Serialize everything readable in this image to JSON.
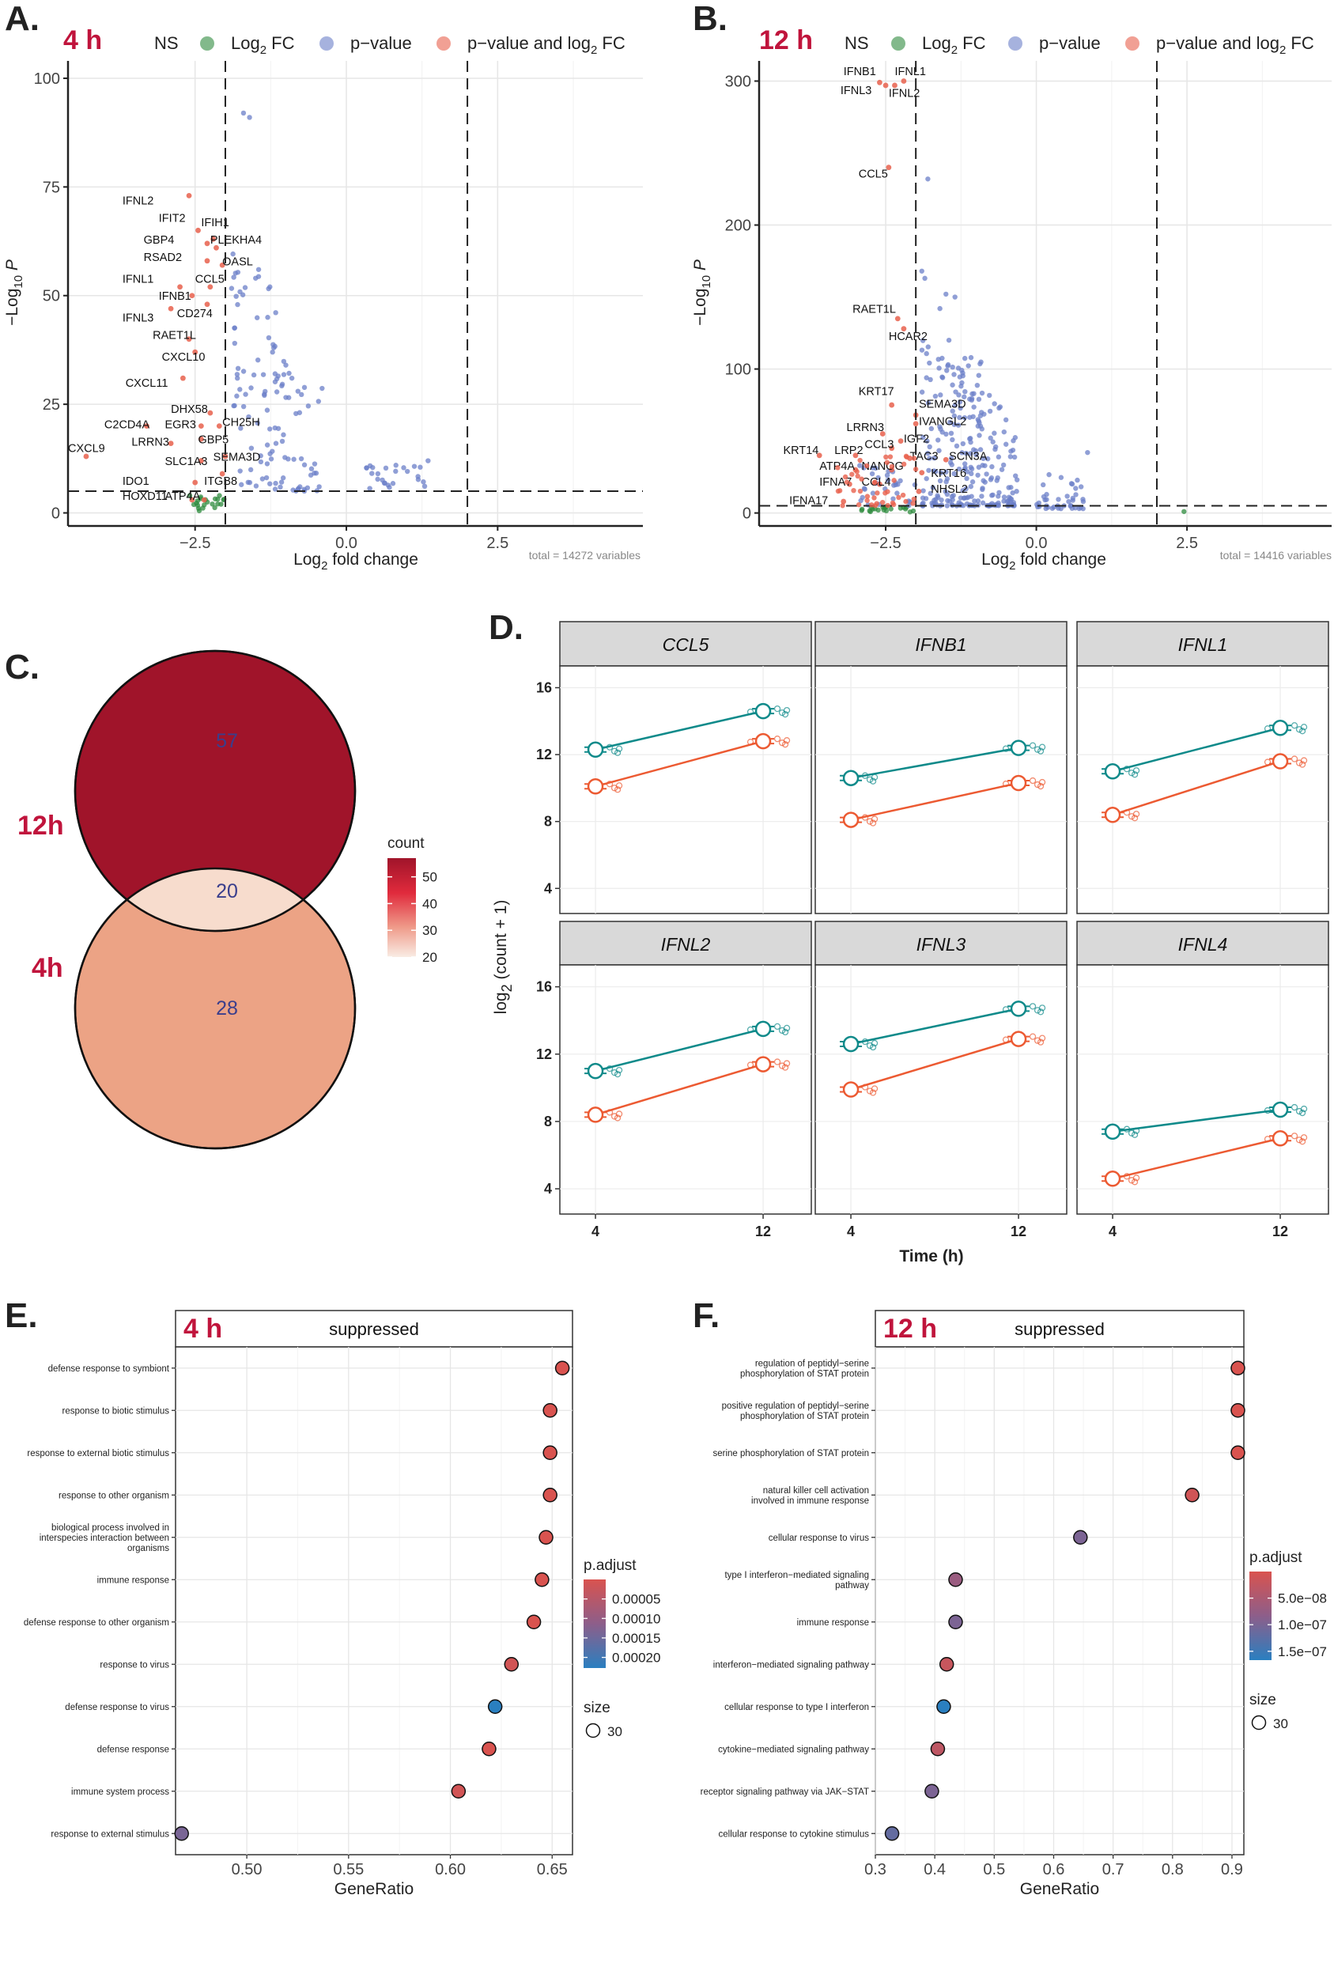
{
  "colors": {
    "ns": "#7a7a7a",
    "fc": "#2e8b3e",
    "pv": "#6b7fc8",
    "both": "#e8604c",
    "accent": "#c0143c",
    "teal": "#0f8a8a",
    "orange": "#ec5a32",
    "venn12": "#a0142a",
    "vennInter": "#f7dccd",
    "venn4": "#eca385",
    "vennText": "#3a3e8c",
    "goRed": "#d9534f",
    "goBlue": "#2a7fc0",
    "goPurple": "#8d5e8a"
  },
  "panels": {
    "A": {
      "letter": "A.",
      "timepoint": "4 h"
    },
    "B": {
      "letter": "B.",
      "timepoint": "12 h"
    },
    "C": {
      "letter": "C."
    },
    "D": {
      "letter": "D."
    },
    "E": {
      "letter": "E.",
      "timepoint": "4 h"
    },
    "F": {
      "letter": "F.",
      "timepoint": "12 h"
    }
  },
  "volcano_legend": {
    "ns": "NS",
    "fc_prefix": "Log",
    "fc_sub": "2",
    "fc_suffix": " FC",
    "pv": "p−value",
    "both_prefix": "p−value and log",
    "both_sub": "2",
    "both_suffix": " FC"
  },
  "volcano_axis": {
    "x_prefix": "Log",
    "x_sub": "2",
    "x_suffix": " fold change",
    "y_prefix": "−Log",
    "y_sub": "10",
    "y_suffix": " P"
  },
  "chart_data": [
    {
      "id": "volcano_4h",
      "type": "scatter",
      "title": "4 h",
      "xlabel": "Log2 fold change",
      "ylabel": "-Log10 P",
      "xlim": [
        -4.6,
        4.9
      ],
      "ylim": [
        -3,
        104
      ],
      "xticks": [
        -2.5,
        0.0,
        2.5
      ],
      "xtick_labels": [
        "−2.5",
        "0.0",
        "2.5"
      ],
      "yticks": [
        0,
        25,
        50,
        75,
        100
      ],
      "thresholds": {
        "log2fc": [
          -2,
          2
        ],
        "p": 5
      },
      "caption": "total = 14272 variables",
      "labeled_genes": [
        {
          "gene": "IFNL2",
          "x": -2.6,
          "y": 73,
          "lx": -3.7,
          "ly": 71
        },
        {
          "gene": "IFIT2",
          "x": -2.45,
          "y": 65,
          "lx": -3.1,
          "ly": 67
        },
        {
          "gene": "IFIH1",
          "x": -2.2,
          "y": 63,
          "lx": -2.4,
          "ly": 66
        },
        {
          "gene": "GBP4",
          "x": -2.3,
          "y": 62,
          "lx": -3.35,
          "ly": 62
        },
        {
          "gene": "PLEKHA4",
          "x": -2.15,
          "y": 61,
          "lx": -2.25,
          "ly": 62
        },
        {
          "gene": "RSAD2",
          "x": -2.3,
          "y": 58,
          "lx": -3.35,
          "ly": 58
        },
        {
          "gene": "OASL",
          "x": -2.05,
          "y": 57,
          "lx": -2.05,
          "ly": 57
        },
        {
          "gene": "IFNL1",
          "x": -2.75,
          "y": 52,
          "lx": -3.7,
          "ly": 53
        },
        {
          "gene": "CCL5",
          "x": -2.25,
          "y": 52,
          "lx": -2.5,
          "ly": 53
        },
        {
          "gene": "IFNB1",
          "x": -2.55,
          "y": 50,
          "lx": -3.1,
          "ly": 49
        },
        {
          "gene": "CD274",
          "x": -2.3,
          "y": 48,
          "lx": -2.8,
          "ly": 45
        },
        {
          "gene": "IFNL3",
          "x": -2.9,
          "y": 47,
          "lx": -3.7,
          "ly": 44
        },
        {
          "gene": "RAET1L",
          "x": -2.6,
          "y": 40,
          "lx": -3.2,
          "ly": 40
        },
        {
          "gene": "CXCL10",
          "x": -2.5,
          "y": 37,
          "lx": -3.05,
          "ly": 35
        },
        {
          "gene": "CXCL11",
          "x": -2.7,
          "y": 31,
          "lx": -3.65,
          "ly": 29
        },
        {
          "gene": "DHX58",
          "x": -2.25,
          "y": 23,
          "lx": -2.9,
          "ly": 23
        },
        {
          "gene": "CH25H",
          "x": -2.1,
          "y": 20,
          "lx": -2.05,
          "ly": 20
        },
        {
          "gene": "C2CD4A",
          "x": -3.3,
          "y": 20,
          "lx": -4.0,
          "ly": 19.5
        },
        {
          "gene": "EGR3",
          "x": -2.4,
          "y": 20,
          "lx": -3.0,
          "ly": 19.5
        },
        {
          "gene": "GBP5",
          "x": -2.4,
          "y": 17,
          "lx": -2.45,
          "ly": 16
        },
        {
          "gene": "LRRN3",
          "x": -2.9,
          "y": 16,
          "lx": -3.55,
          "ly": 15.5
        },
        {
          "gene": "CXCL9",
          "x": -4.3,
          "y": 13,
          "lx": -4.6,
          "ly": 14
        },
        {
          "gene": "SLC1A3",
          "x": -2.4,
          "y": 12,
          "lx": -3.0,
          "ly": 11
        },
        {
          "gene": "SEMA3D",
          "x": -2.0,
          "y": 13,
          "lx": -2.2,
          "ly": 12
        },
        {
          "gene": "IDO1",
          "x": -2.5,
          "y": 7,
          "lx": -3.7,
          "ly": 6.5
        },
        {
          "gene": "ITGB8",
          "x": -2.05,
          "y": 9,
          "lx": -2.35,
          "ly": 6.5
        },
        {
          "gene": "HOXD11",
          "x": -2.55,
          "y": 3,
          "lx": -3.7,
          "ly": 3
        },
        {
          "gene": "ATP4A",
          "x": -2.35,
          "y": 3,
          "lx": -3.0,
          "ly": 3
        }
      ]
    },
    {
      "id": "volcano_12h",
      "type": "scatter",
      "title": "12 h",
      "xlabel": "Log2 fold change",
      "ylabel": "-Log10 P",
      "xlim": [
        -4.6,
        4.9
      ],
      "ylim": [
        -9,
        314
      ],
      "xticks": [
        -2.5,
        0.0,
        2.5
      ],
      "xtick_labels": [
        "−2.5",
        "0.0",
        "2.5"
      ],
      "yticks": [
        0,
        100,
        200,
        300
      ],
      "thresholds": {
        "log2fc": [
          -2,
          2
        ],
        "p": 5
      },
      "caption": "total = 14416 variables",
      "labeled_genes": [
        {
          "gene": "IFNB1",
          "x": -2.6,
          "y": 299,
          "lx": -3.2,
          "ly": 304
        },
        {
          "gene": "IFNL1",
          "x": -2.2,
          "y": 300,
          "lx": -2.35,
          "ly": 304
        },
        {
          "gene": "IFNL3",
          "x": -2.5,
          "y": 297,
          "lx": -3.25,
          "ly": 291
        },
        {
          "gene": "IFNL2",
          "x": -2.35,
          "y": 297,
          "lx": -2.45,
          "ly": 289
        },
        {
          "gene": "CCL5",
          "x": -2.45,
          "y": 240,
          "lx": -2.95,
          "ly": 233
        },
        {
          "gene": "RAET1L",
          "x": -2.3,
          "y": 135,
          "lx": -3.05,
          "ly": 139
        },
        {
          "gene": "HCAR2",
          "x": -2.2,
          "y": 128,
          "lx": -2.45,
          "ly": 120
        },
        {
          "gene": "KRT17",
          "x": -2.4,
          "y": 75,
          "lx": -2.95,
          "ly": 82
        },
        {
          "gene": "SEMA3D",
          "x": -2.0,
          "y": 68,
          "lx": -1.95,
          "ly": 73
        },
        {
          "gene": "IVANGL2",
          "x": -2.0,
          "y": 62,
          "lx": -1.95,
          "ly": 61
        },
        {
          "gene": "LRRN3",
          "x": -2.55,
          "y": 55,
          "lx": -3.15,
          "ly": 57
        },
        {
          "gene": "IGF2",
          "x": -2.25,
          "y": 50,
          "lx": -2.2,
          "ly": 49
        },
        {
          "gene": "CCL3",
          "x": -2.4,
          "y": 45,
          "lx": -2.85,
          "ly": 45
        },
        {
          "gene": "KRT14",
          "x": -3.6,
          "y": 40,
          "lx": -4.2,
          "ly": 41
        },
        {
          "gene": "LRP2",
          "x": -3.0,
          "y": 40,
          "lx": -3.35,
          "ly": 41
        },
        {
          "gene": "TAC3",
          "x": -2.1,
          "y": 38,
          "lx": -2.1,
          "ly": 37
        },
        {
          "gene": "SCN3A",
          "x": -1.5,
          "y": 37,
          "lx": -1.45,
          "ly": 37
        },
        {
          "gene": "ATP4A",
          "x": -3.0,
          "y": 30,
          "lx": -3.6,
          "ly": 30
        },
        {
          "gene": "NANOG",
          "x": -2.4,
          "y": 30,
          "lx": -2.9,
          "ly": 30
        },
        {
          "gene": "KRT16",
          "x": -1.9,
          "y": 28,
          "lx": -1.75,
          "ly": 25
        },
        {
          "gene": "IFNA7",
          "x": -3.1,
          "y": 20,
          "lx": -3.6,
          "ly": 19
        },
        {
          "gene": "CCL4",
          "x": -2.6,
          "y": 20,
          "lx": -2.9,
          "ly": 19
        },
        {
          "gene": "NHSL2",
          "x": -1.95,
          "y": 15,
          "lx": -1.75,
          "ly": 14
        },
        {
          "gene": "IFNA17",
          "x": -3.2,
          "y": 8,
          "lx": -4.1,
          "ly": 6
        }
      ]
    },
    {
      "id": "venn",
      "type": "venn",
      "sets": [
        {
          "name": "12h",
          "only": 57
        },
        {
          "name": "4h",
          "only": 28
        }
      ],
      "intersection": 20,
      "legend": {
        "title": "count",
        "ticks": [
          20,
          30,
          40,
          50
        ],
        "range": [
          20,
          57
        ]
      }
    },
    {
      "id": "expression",
      "type": "line",
      "xlabel": "Time (h)",
      "ylabel": "log2 (count + 1)",
      "x": [
        4,
        12
      ],
      "xlim": [
        2.3,
        14.3
      ],
      "ylim": [
        2.5,
        17.3
      ],
      "yticks": [
        4,
        8,
        12,
        16
      ],
      "series_colors": {
        "group_a": "#0f8a8a",
        "group_b": "#ec5a32"
      },
      "facets": [
        {
          "gene": "CCL5",
          "group_a": [
            12.3,
            14.6
          ],
          "group_b": [
            10.1,
            12.8
          ]
        },
        {
          "gene": "IFNB1",
          "group_a": [
            10.6,
            12.4
          ],
          "group_b": [
            8.1,
            10.3
          ]
        },
        {
          "gene": "IFNL1",
          "group_a": [
            11.0,
            13.6
          ],
          "group_b": [
            8.4,
            11.6
          ]
        },
        {
          "gene": "IFNL2",
          "group_a": [
            11.0,
            13.5
          ],
          "group_b": [
            8.4,
            11.4
          ]
        },
        {
          "gene": "IFNL3",
          "group_a": [
            12.6,
            14.7
          ],
          "group_b": [
            9.9,
            12.9
          ]
        },
        {
          "gene": "IFNL4",
          "group_a": [
            7.4,
            8.7
          ],
          "group_b": [
            4.6,
            7.0
          ]
        }
      ]
    },
    {
      "id": "go_4h",
      "type": "scatter",
      "title": "4 h",
      "subtitle": "suppressed",
      "xlabel": "GeneRatio",
      "xlim": [
        0.465,
        0.66
      ],
      "xticks": [
        0.5,
        0.55,
        0.6,
        0.65
      ],
      "xtick_labels": [
        "0.50",
        "0.55",
        "0.60",
        "0.65"
      ],
      "terms": [
        {
          "term": [
            "defense response to symbiont"
          ],
          "gene_ratio": 0.655,
          "p_adjust": 2e-05
        },
        {
          "term": [
            "response to biotic stimulus"
          ],
          "gene_ratio": 0.649,
          "p_adjust": 2e-05
        },
        {
          "term": [
            "response to external biotic stimulus"
          ],
          "gene_ratio": 0.649,
          "p_adjust": 2e-05
        },
        {
          "term": [
            "response to other organism"
          ],
          "gene_ratio": 0.649,
          "p_adjust": 2e-05
        },
        {
          "term": [
            "biological process involved in",
            "interspecies interaction between",
            "organisms"
          ],
          "gene_ratio": 0.647,
          "p_adjust": 2e-05
        },
        {
          "term": [
            "immune response"
          ],
          "gene_ratio": 0.645,
          "p_adjust": 2e-05
        },
        {
          "term": [
            "defense response to other organism"
          ],
          "gene_ratio": 0.641,
          "p_adjust": 2e-05
        },
        {
          "term": [
            "response to virus"
          ],
          "gene_ratio": 0.63,
          "p_adjust": 3e-05
        },
        {
          "term": [
            "defense response to virus"
          ],
          "gene_ratio": 0.622,
          "p_adjust": 0.00022
        },
        {
          "term": [
            "defense response"
          ],
          "gene_ratio": 0.619,
          "p_adjust": 2e-05
        },
        {
          "term": [
            "immune system process"
          ],
          "gene_ratio": 0.604,
          "p_adjust": 3e-05
        },
        {
          "term": [
            "response to external stimulus"
          ],
          "gene_ratio": 0.468,
          "p_adjust": 0.00014
        }
      ],
      "legend": {
        "title": "p.adjust",
        "ticks": [
          "0.00005",
          "0.00010",
          "0.00015",
          "0.00020"
        ],
        "size_title": "size",
        "size_value": "30"
      }
    },
    {
      "id": "go_12h",
      "type": "scatter",
      "title": "12 h",
      "subtitle": "suppressed",
      "xlabel": "GeneRatio",
      "xlim": [
        0.3,
        0.92
      ],
      "xticks": [
        0.3,
        0.4,
        0.5,
        0.6,
        0.7,
        0.8,
        0.9
      ],
      "xtick_labels": [
        "0.3",
        "0.4",
        "0.5",
        "0.6",
        "0.7",
        "0.8",
        "0.9"
      ],
      "terms": [
        {
          "term": [
            "regulation of peptidyl−serine",
            "phosphorylation of STAT protein"
          ],
          "gene_ratio": 0.91,
          "p_adjust": 1e-08
        },
        {
          "term": [
            "positive regulation of peptidyl−serine",
            "phosphorylation of STAT protein"
          ],
          "gene_ratio": 0.91,
          "p_adjust": 1e-08
        },
        {
          "term": [
            "serine phosphorylation of STAT protein"
          ],
          "gene_ratio": 0.91,
          "p_adjust": 1e-08
        },
        {
          "term": [
            "natural killer cell activation",
            "involved in immune response"
          ],
          "gene_ratio": 0.833,
          "p_adjust": 2e-08
        },
        {
          "term": [
            "cellular response to virus"
          ],
          "gene_ratio": 0.645,
          "p_adjust": 1.1e-07
        },
        {
          "term": [
            "type I interferon−mediated signaling",
            "pathway"
          ],
          "gene_ratio": 0.435,
          "p_adjust": 8e-08
        },
        {
          "term": [
            "immune response"
          ],
          "gene_ratio": 0.435,
          "p_adjust": 1.1e-07
        },
        {
          "term": [
            "interferon−mediated signaling pathway"
          ],
          "gene_ratio": 0.42,
          "p_adjust": 3e-08
        },
        {
          "term": [
            "cellular response to type I interferon"
          ],
          "gene_ratio": 0.415,
          "p_adjust": 1.8e-07
        },
        {
          "term": [
            "cytokine−mediated signaling pathway"
          ],
          "gene_ratio": 0.405,
          "p_adjust": 4e-08
        },
        {
          "term": [
            "receptor signaling pathway via JAK−STAT"
          ],
          "gene_ratio": 0.395,
          "p_adjust": 1.1e-07
        },
        {
          "term": [
            "cellular response to cytokine stimulus"
          ],
          "gene_ratio": 0.328,
          "p_adjust": 1.3e-07
        }
      ],
      "legend": {
        "title": "p.adjust",
        "ticks": [
          "5.0e−08",
          "1.0e−07",
          "1.5e−07"
        ],
        "size_title": "size",
        "size_value": "30"
      }
    }
  ]
}
